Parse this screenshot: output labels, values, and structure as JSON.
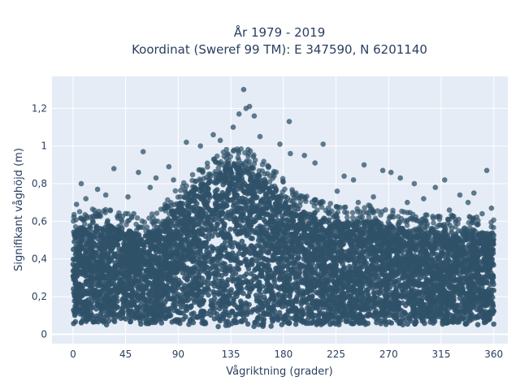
{
  "chart_data": {
    "type": "scatter",
    "title_line1": "År 1979 - 2019",
    "title_line2": "Koordinat (Sweref 99 TM): E 347590, N 6201140",
    "xlabel": "Vågriktning (grader)",
    "ylabel": "Signifikant våghöjd (m)",
    "xlim": [
      -18,
      372
    ],
    "ylim": [
      -0.05,
      1.37
    ],
    "xticks": [
      0,
      45,
      90,
      135,
      180,
      225,
      270,
      315,
      360
    ],
    "yticks": [
      0,
      0.2,
      0.4,
      0.6,
      0.8,
      1.0,
      1.2
    ],
    "ytick_labels": [
      "0",
      "0,2",
      "0,4",
      "0,6",
      "0,8",
      "1",
      "1,2"
    ],
    "grid": true,
    "marker_color": "#2f5168",
    "plot_bg": "#e5ecf6",
    "density_envelope": {
      "x": [
        0,
        15,
        30,
        45,
        60,
        75,
        90,
        105,
        120,
        135,
        150,
        165,
        180,
        195,
        210,
        225,
        240,
        255,
        270,
        285,
        300,
        315,
        330,
        345,
        360
      ],
      "lower": [
        0.05,
        0.05,
        0.05,
        0.05,
        0.05,
        0.05,
        0.05,
        0.05,
        0.04,
        0.04,
        0.04,
        0.04,
        0.05,
        0.05,
        0.05,
        0.05,
        0.05,
        0.05,
        0.05,
        0.05,
        0.05,
        0.05,
        0.05,
        0.05,
        0.05
      ],
      "upper": [
        0.56,
        0.58,
        0.58,
        0.56,
        0.52,
        0.58,
        0.7,
        0.78,
        0.84,
        0.92,
        0.9,
        0.82,
        0.74,
        0.66,
        0.62,
        0.6,
        0.6,
        0.6,
        0.58,
        0.56,
        0.55,
        0.55,
        0.54,
        0.54,
        0.54
      ]
    },
    "outliers": [
      {
        "x": 146,
        "y": 1.3
      },
      {
        "x": 148,
        "y": 1.2
      },
      {
        "x": 151,
        "y": 1.21
      },
      {
        "x": 142,
        "y": 1.17
      },
      {
        "x": 155,
        "y": 1.16
      },
      {
        "x": 185,
        "y": 1.13
      },
      {
        "x": 120,
        "y": 1.06
      },
      {
        "x": 137,
        "y": 1.1
      },
      {
        "x": 160,
        "y": 1.05
      },
      {
        "x": 97,
        "y": 1.02
      },
      {
        "x": 109,
        "y": 1.0
      },
      {
        "x": 126,
        "y": 1.03
      },
      {
        "x": 177,
        "y": 1.01
      },
      {
        "x": 186,
        "y": 0.96
      },
      {
        "x": 214,
        "y": 1.01
      },
      {
        "x": 60,
        "y": 0.97
      },
      {
        "x": 82,
        "y": 0.89
      },
      {
        "x": 35,
        "y": 0.88
      },
      {
        "x": 7,
        "y": 0.8
      },
      {
        "x": 21,
        "y": 0.77
      },
      {
        "x": 56,
        "y": 0.86
      },
      {
        "x": 71,
        "y": 0.83
      },
      {
        "x": 198,
        "y": 0.95
      },
      {
        "x": 207,
        "y": 0.91
      },
      {
        "x": 249,
        "y": 0.9
      },
      {
        "x": 232,
        "y": 0.84
      },
      {
        "x": 240,
        "y": 0.82
      },
      {
        "x": 265,
        "y": 0.87
      },
      {
        "x": 272,
        "y": 0.86
      },
      {
        "x": 280,
        "y": 0.83
      },
      {
        "x": 292,
        "y": 0.8
      },
      {
        "x": 318,
        "y": 0.82
      },
      {
        "x": 354,
        "y": 0.87
      },
      {
        "x": 343,
        "y": 0.75
      },
      {
        "x": 331,
        "y": 0.74
      },
      {
        "x": 310,
        "y": 0.78
      },
      {
        "x": 3,
        "y": 0.69
      },
      {
        "x": 11,
        "y": 0.72
      },
      {
        "x": 28,
        "y": 0.74
      },
      {
        "x": 47,
        "y": 0.73
      },
      {
        "x": 52,
        "y": 0.64
      },
      {
        "x": 66,
        "y": 0.78
      },
      {
        "x": 86,
        "y": 0.82
      },
      {
        "x": 300,
        "y": 0.72
      },
      {
        "x": 322,
        "y": 0.66
      },
      {
        "x": 338,
        "y": 0.7
      },
      {
        "x": 350,
        "y": 0.64
      },
      {
        "x": 358,
        "y": 0.67
      },
      {
        "x": 226,
        "y": 0.76
      },
      {
        "x": 257,
        "y": 0.73
      },
      {
        "x": 286,
        "y": 0.7
      },
      {
        "x": 244,
        "y": 0.7
      }
    ]
  }
}
